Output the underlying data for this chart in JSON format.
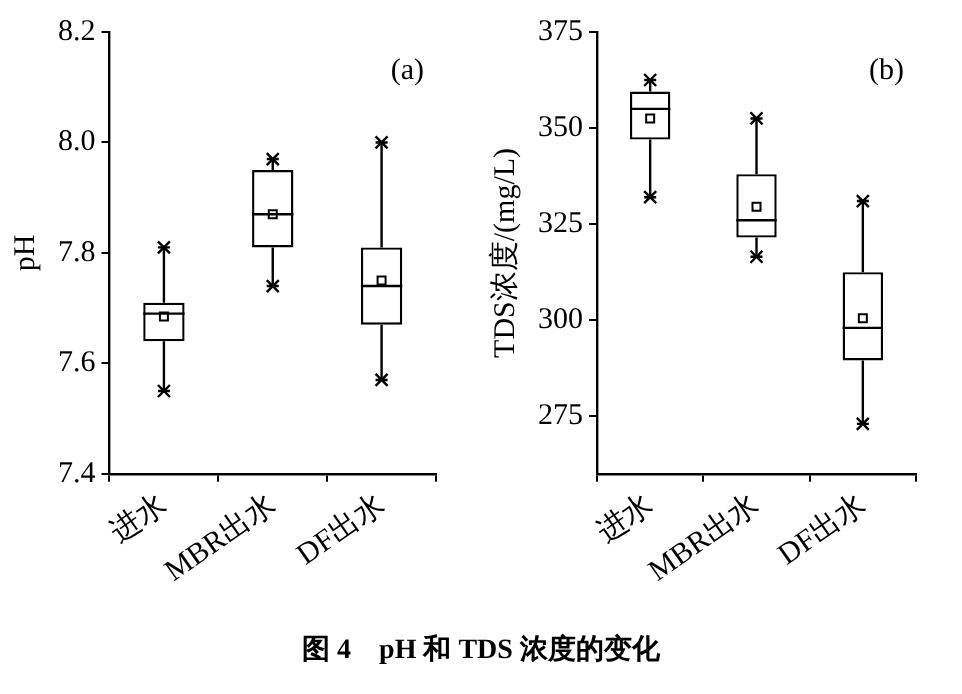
{
  "chart_data": [
    {
      "type": "box",
      "ylabel": "pH",
      "categories": [
        "进水",
        "MBR出水",
        "DF出水"
      ],
      "boxes": [
        {
          "low": 7.55,
          "q1": 7.64,
          "median": 7.69,
          "q3": 7.71,
          "high": 7.81,
          "mean": 7.685
        },
        {
          "low": 7.74,
          "q1": 7.81,
          "median": 7.87,
          "q3": 7.95,
          "high": 7.97,
          "mean": 7.87
        },
        {
          "low": 7.57,
          "q1": 7.67,
          "median": 7.74,
          "q3": 7.81,
          "high": 8.0,
          "mean": 7.75
        }
      ],
      "color": "#000000",
      "ylim": [
        7.4,
        8.2
      ],
      "yticks": [
        7.4,
        7.6,
        7.8,
        {
          "value": 8,
          "label": "8.0"
        },
        8.2
      ],
      "grid": false,
      "annotations": [
        "(a)",
        "图 4　pH 和 TDS 浓度的变化"
      ]
    },
    {
      "type": "box",
      "ylabel": "TDS浓度/(mg/L)",
      "categories": [
        "进水",
        "MBR出水",
        "DF出水"
      ],
      "boxes": [
        {
          "low": 332,
          "q1": 347,
          "median": 355,
          "q3": 359.5,
          "high": 362.5,
          "mean": 352.5
        },
        {
          "low": 316.5,
          "q1": 321.5,
          "median": 326,
          "q3": 338,
          "high": 352.5,
          "mean": 329.5
        },
        {
          "low": 273,
          "q1": 289.5,
          "median": 298,
          "q3": 312.5,
          "high": 331,
          "mean": 300.5
        }
      ],
      "color": "#000000",
      "ylim": [
        260,
        375
      ],
      "yticks": [
        275,
        300,
        325,
        350,
        375
      ],
      "grid": false,
      "annotations": [
        "(b)"
      ]
    }
  ]
}
